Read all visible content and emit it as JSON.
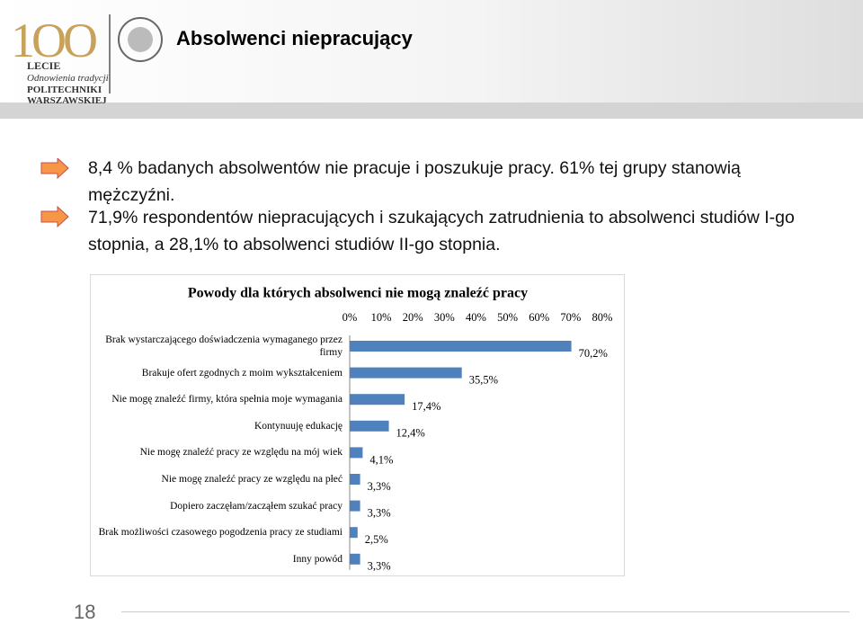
{
  "header": {
    "title": "Absolwenci niepracujący",
    "logo_lines": [
      "LECIE",
      "Odnowienia tradycji",
      "POLITECHNIKI",
      "WARSZAWSKIEJ"
    ]
  },
  "bullets": [
    "8,4 % badanych absolwentów nie pracuje i poszukuje pracy. 61% tej grupy stanowią mężczyźni.",
    "71,9% respondentów niepracujących i szukających zatrudnienia to absolwenci studiów I-go stopnia, a 28,1% to absolwenci studiów II-go stopnia."
  ],
  "chart_data": {
    "type": "hbar",
    "title": "Powody dla których absolwenci nie mogą znaleźć pracy",
    "categories": [
      "Brak wystarczającego doświadczenia wymaganego przez firmy",
      "Brakuje ofert zgodnych z moim wykształceniem",
      "Nie mogę znaleźć firmy, która spełnia moje wymagania",
      "Kontynuuję edukację",
      "Nie mogę znaleźć pracy ze względu na mój wiek",
      "Nie mogę znaleźć pracy ze względu na płeć",
      "Dopiero zaczęłam/zacząłem szukać pracy",
      "Brak możliwości czasowego pogodzenia pracy ze studiami",
      "Inny powód"
    ],
    "values": [
      70.2,
      35.5,
      17.4,
      12.4,
      4.1,
      3.3,
      3.3,
      2.5,
      3.3
    ],
    "value_labels": [
      "70,2%",
      "35,5%",
      "17,4%",
      "12,4%",
      "4,1%",
      "3,3%",
      "3,3%",
      "2,5%",
      "3,3%"
    ],
    "color": "#4f81bd",
    "xlim": [
      0,
      80
    ],
    "xticks": [
      {
        "value": 0,
        "label": "0%"
      },
      {
        "value": 10,
        "label": "10%"
      },
      {
        "value": 20,
        "label": "20%"
      },
      {
        "value": 30,
        "label": "30%"
      },
      {
        "value": 40,
        "label": "40%"
      },
      {
        "value": 50,
        "label": "50%"
      },
      {
        "value": 60,
        "label": "60%"
      },
      {
        "value": 70,
        "label": "70%"
      },
      {
        "value": 80,
        "label": "80%"
      }
    ]
  },
  "page_number": "18"
}
